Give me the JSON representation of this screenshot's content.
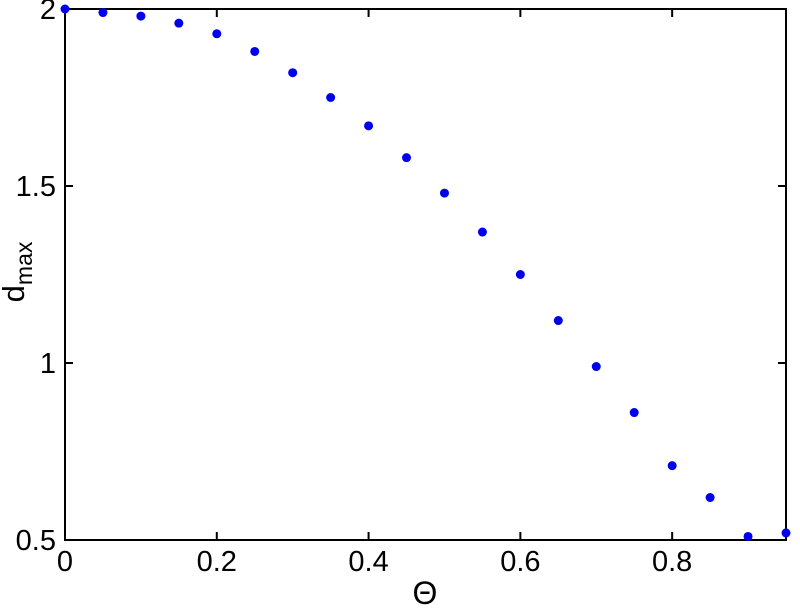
{
  "chart_data": {
    "type": "scatter",
    "title": "",
    "xlabel": "Θ",
    "ylabel_main": "d",
    "ylabel_sub": "max",
    "x": [
      0.0,
      0.05,
      0.1,
      0.15,
      0.2,
      0.25,
      0.3,
      0.35,
      0.4,
      0.45,
      0.5,
      0.55,
      0.6,
      0.65,
      0.7,
      0.75,
      0.8,
      0.85,
      0.9,
      0.95
    ],
    "y": [
      2.0,
      1.99,
      1.98,
      1.96,
      1.93,
      1.88,
      1.82,
      1.75,
      1.67,
      1.58,
      1.48,
      1.37,
      1.25,
      1.12,
      0.99,
      0.86,
      0.71,
      0.62,
      0.51,
      0.52
    ],
    "xlim": [
      0,
      0.95
    ],
    "ylim": [
      0.5,
      2
    ],
    "xticks": [
      0,
      0.2,
      0.4,
      0.6,
      0.8
    ],
    "xtick_labels": [
      "0",
      "0.2",
      "0.4",
      "0.6",
      "0.8"
    ],
    "yticks": [
      0.5,
      1,
      1.5,
      2
    ],
    "ytick_labels": [
      "0.5",
      "1",
      "1.5",
      "2"
    ],
    "marker_color": "#0000ee",
    "axis_color": "#000000",
    "background": "#ffffff",
    "grid": false,
    "legend": null
  }
}
